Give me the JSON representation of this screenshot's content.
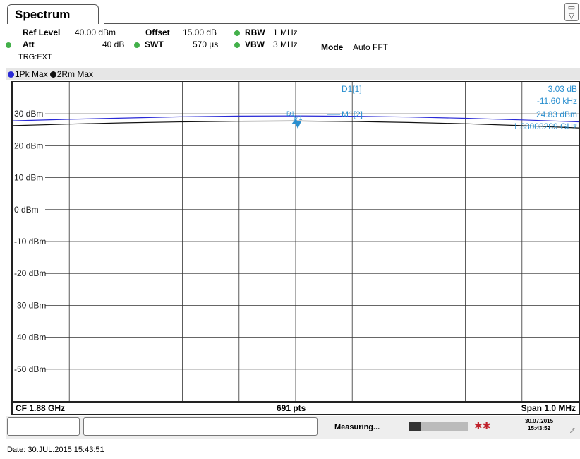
{
  "tab": {
    "title": "Spectrum"
  },
  "settings": {
    "ref_level_label": "Ref Level",
    "ref_level_value": "40.00 dBm",
    "offset_label": "Offset",
    "offset_value": "15.00 dB",
    "rbw_label": "RBW",
    "rbw_value": "1 MHz",
    "att_label": "Att",
    "att_value": "40 dB",
    "swt_label": "SWT",
    "swt_value": "570 µs",
    "vbw_label": "VBW",
    "vbw_value": "3 MHz",
    "mode_label": "Mode",
    "mode_value": "Auto FFT",
    "trigger": "TRG:EXT"
  },
  "traces": [
    {
      "label": "1Pk Max",
      "color": "#2a2ad6"
    },
    {
      "label": "2Rm Max",
      "color": "#111111"
    }
  ],
  "marker_info": {
    "d1_label": "D1[1]",
    "d1_value": "3.03 dB",
    "d1_freq": "-11.60 kHz",
    "m1_label": "M1[2]",
    "m1_value": "24.83 dBm",
    "m1_freq": "1.88008289 GHz"
  },
  "markers_on_plot": {
    "d1": "D1",
    "m1": "M1"
  },
  "bottom": {
    "cf": "CF 1.88 GHz",
    "points": "691 pts",
    "span": "Span 1.0 MHz"
  },
  "status": {
    "measuring": "Measuring...",
    "date": "30.07.2015",
    "time": "15:43:52"
  },
  "footer": {
    "date_text": "Date: 30.JUL.2015  15:43:51"
  },
  "chart_data": {
    "type": "line",
    "ylim": [
      -60,
      40
    ],
    "y_ticks": [
      "30 dBm",
      "20 dBm",
      "10 dBm",
      "0 dBm",
      "-10 dBm",
      "-20 dBm",
      "-30 dBm",
      "-40 dBm",
      "-50 dBm"
    ],
    "grid": true,
    "series": [
      {
        "name": "1Pk Max",
        "color": "#2a2ad6",
        "x": [
          0,
          0.1,
          0.2,
          0.3,
          0.4,
          0.5,
          0.6,
          0.7,
          0.8,
          0.9,
          1.0
        ],
        "values": [
          27.8,
          28.3,
          28.7,
          29.1,
          29.3,
          29.35,
          29.25,
          29.0,
          28.6,
          28.1,
          27.5
        ]
      },
      {
        "name": "2Rm Max",
        "color": "#111111",
        "x": [
          0,
          0.1,
          0.2,
          0.3,
          0.4,
          0.5,
          0.6,
          0.7,
          0.8,
          0.9,
          1.0
        ],
        "values": [
          26.3,
          26.8,
          27.2,
          27.5,
          27.7,
          27.75,
          27.6,
          27.3,
          26.9,
          26.3,
          25.6
        ]
      }
    ]
  }
}
